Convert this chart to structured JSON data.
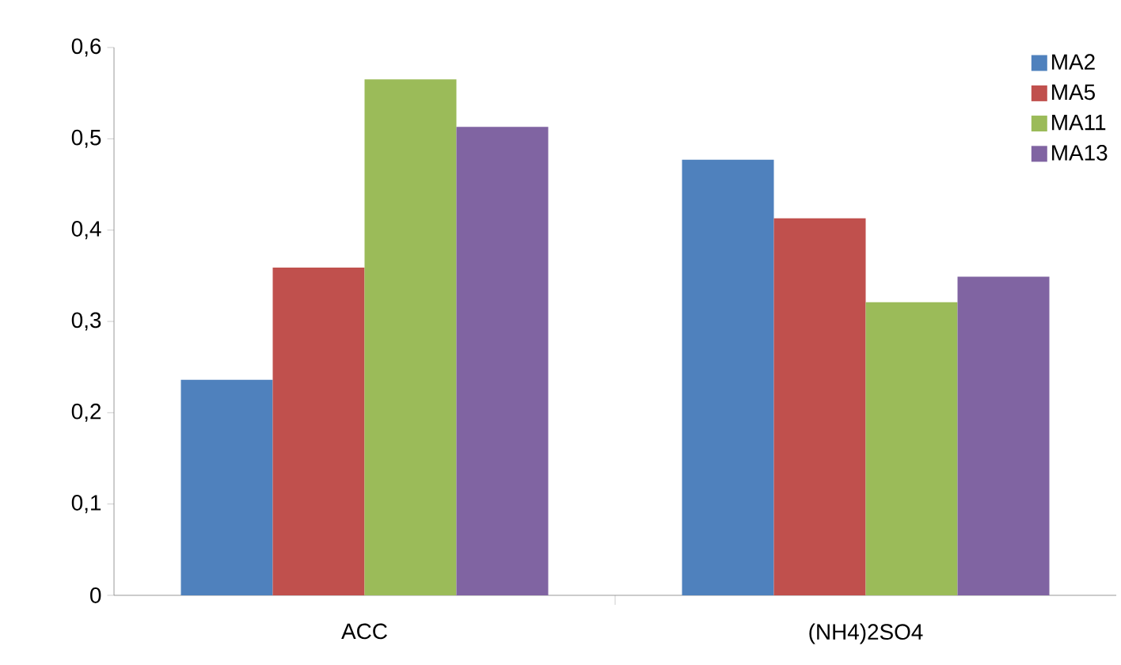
{
  "chart_data": {
    "type": "bar",
    "categories": [
      "ACC",
      "(NH4)2SO4"
    ],
    "series": [
      {
        "name": "MA2",
        "color": "#4f81bd",
        "values": [
          0.236,
          0.477
        ]
      },
      {
        "name": "MA5",
        "color": "#c0504d",
        "values": [
          0.359,
          0.413
        ]
      },
      {
        "name": "MA11",
        "color": "#9bbb59",
        "values": [
          0.565,
          0.321
        ]
      },
      {
        "name": "MA13",
        "color": "#8064a2",
        "values": [
          0.513,
          0.349
        ]
      }
    ],
    "ylim": [
      0,
      0.6
    ],
    "yticks": [
      {
        "value": 0,
        "label": "0"
      },
      {
        "value": 0.1,
        "label": "0,1"
      },
      {
        "value": 0.2,
        "label": "0,2"
      },
      {
        "value": 0.3,
        "label": "0,3"
      },
      {
        "value": 0.4,
        "label": "0,4"
      },
      {
        "value": 0.5,
        "label": "0,5"
      },
      {
        "value": 0.6,
        "label": "0,6"
      }
    ],
    "grid": false,
    "legend": "top right"
  }
}
